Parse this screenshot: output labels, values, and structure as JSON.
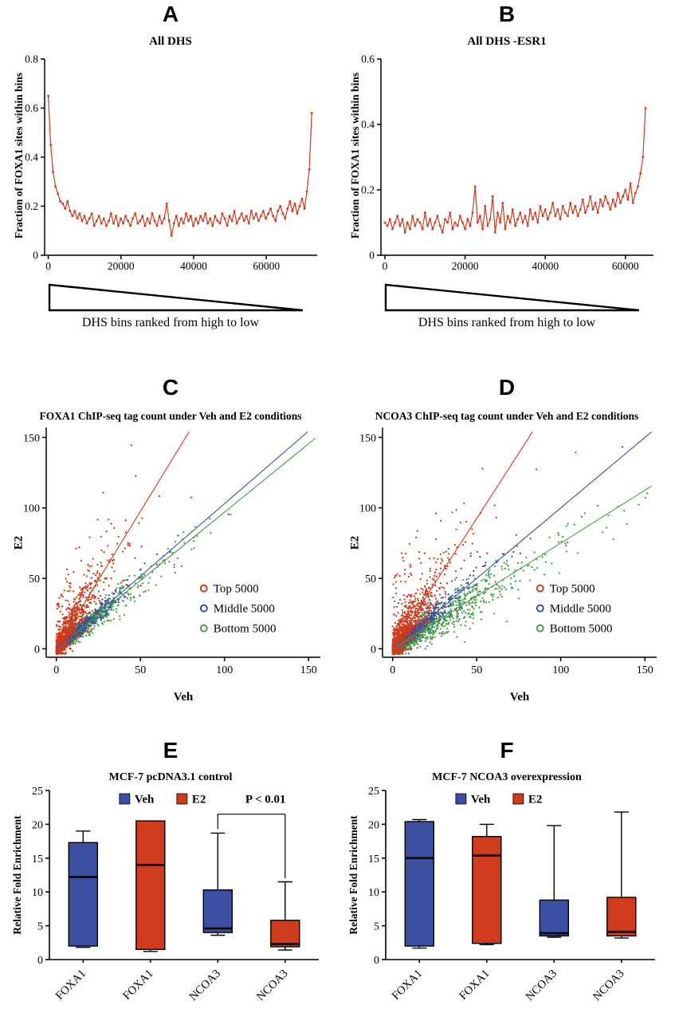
{
  "colors": {
    "red": "#cf3b1d",
    "blue": "#3a4fa2",
    "green": "#44a044",
    "axis": "#000000"
  },
  "panels": {
    "A": {
      "letter": "A",
      "title": "All DHS",
      "ylabel": "Fraction of FOXA1 sites within bins",
      "caption": "DHS bins ranked from high to low"
    },
    "B": {
      "letter": "B",
      "title": "All DHS -ESR1",
      "ylabel": "Fraction of FOXA1 sites within bins",
      "caption": "DHS bins ranked from high to low"
    },
    "C": {
      "letter": "C",
      "title": "FOXA1 ChIP-seq tag count under Veh and E2 conditions",
      "xlabel": "Veh",
      "ylabel": "E2"
    },
    "D": {
      "letter": "D",
      "title": "NCOA3 ChIP-seq tag count under Veh and E2 conditions",
      "xlabel": "Veh",
      "ylabel": "E2"
    },
    "E": {
      "letter": "E",
      "title": "MCF-7 pcDNA3.1 control",
      "ylabel": "Relative Fold Enrichment"
    },
    "F": {
      "letter": "F",
      "title": "MCF-7 NCOA3 overexpression",
      "ylabel": "Relative Fold Enrichment"
    }
  },
  "chart_data": [
    {
      "id": "A",
      "type": "line",
      "title": "All DHS",
      "xlabel": "DHS bins ranked from high to low",
      "ylabel": "Fraction of FOXA1 sites within bins",
      "color": "#cf3b1d",
      "xlim": [
        -1000,
        74000
      ],
      "ylim": [
        0,
        0.8
      ],
      "xticks": [
        0,
        20000,
        40000,
        60000
      ],
      "yticks": [
        0,
        0.2,
        0.4,
        0.6,
        0.8
      ],
      "x_data_max": 72500,
      "values": [
        0.65,
        0.45,
        0.34,
        0.28,
        0.25,
        0.22,
        0.21,
        0.19,
        0.22,
        0.18,
        0.16,
        0.18,
        0.15,
        0.17,
        0.14,
        0.16,
        0.13,
        0.15,
        0.17,
        0.12,
        0.14,
        0.16,
        0.13,
        0.15,
        0.12,
        0.14,
        0.17,
        0.13,
        0.16,
        0.12,
        0.15,
        0.13,
        0.16,
        0.14,
        0.12,
        0.15,
        0.17,
        0.13,
        0.14,
        0.16,
        0.12,
        0.15,
        0.13,
        0.17,
        0.14,
        0.12,
        0.16,
        0.13,
        0.15,
        0.21,
        0.14,
        0.08,
        0.13,
        0.16,
        0.12,
        0.15,
        0.13,
        0.17,
        0.14,
        0.16,
        0.12,
        0.15,
        0.13,
        0.16,
        0.14,
        0.17,
        0.13,
        0.15,
        0.12,
        0.16,
        0.14,
        0.13,
        0.17,
        0.15,
        0.12,
        0.16,
        0.14,
        0.18,
        0.13,
        0.15,
        0.17,
        0.14,
        0.16,
        0.13,
        0.18,
        0.15,
        0.17,
        0.14,
        0.16,
        0.18,
        0.15,
        0.17,
        0.19,
        0.16,
        0.14,
        0.18,
        0.2,
        0.17,
        0.15,
        0.19,
        0.22,
        0.18,
        0.21,
        0.17,
        0.2,
        0.23,
        0.19,
        0.26,
        0.35,
        0.58
      ]
    },
    {
      "id": "B",
      "type": "line",
      "title": "All DHS -ESR1",
      "xlabel": "DHS bins ranked from high to low",
      "ylabel": "Fraction of FOXA1 sites within bins",
      "color": "#cf3b1d",
      "xlim": [
        -1000,
        67000
      ],
      "ylim": [
        0,
        0.6
      ],
      "xticks": [
        0,
        20000,
        40000,
        60000
      ],
      "yticks": [
        0,
        0.2,
        0.4,
        0.6
      ],
      "x_data_max": 65000,
      "values": [
        0.1,
        0.09,
        0.11,
        0.08,
        0.1,
        0.12,
        0.09,
        0.11,
        0.07,
        0.1,
        0.08,
        0.12,
        0.09,
        0.11,
        0.1,
        0.08,
        0.13,
        0.09,
        0.11,
        0.08,
        0.1,
        0.12,
        0.09,
        0.07,
        0.11,
        0.1,
        0.13,
        0.08,
        0.1,
        0.09,
        0.12,
        0.1,
        0.08,
        0.11,
        0.09,
        0.13,
        0.21,
        0.1,
        0.12,
        0.08,
        0.15,
        0.09,
        0.11,
        0.18,
        0.07,
        0.13,
        0.1,
        0.16,
        0.08,
        0.12,
        0.1,
        0.14,
        0.09,
        0.11,
        0.13,
        0.1,
        0.12,
        0.09,
        0.14,
        0.11,
        0.13,
        0.1,
        0.15,
        0.12,
        0.14,
        0.11,
        0.13,
        0.16,
        0.12,
        0.14,
        0.11,
        0.15,
        0.13,
        0.12,
        0.16,
        0.13,
        0.15,
        0.12,
        0.14,
        0.17,
        0.13,
        0.15,
        0.18,
        0.14,
        0.16,
        0.13,
        0.17,
        0.15,
        0.18,
        0.16,
        0.14,
        0.17,
        0.15,
        0.19,
        0.16,
        0.18,
        0.2,
        0.17,
        0.22,
        0.16,
        0.19,
        0.21,
        0.25,
        0.3,
        0.45
      ]
    },
    {
      "id": "C",
      "type": "scatter",
      "title": "FOXA1 ChIP-seq tag count under Veh and E2 conditions",
      "xlabel": "Veh",
      "ylabel": "E2",
      "xlim": [
        -6,
        157
      ],
      "ylim": [
        -6,
        157
      ],
      "xticks": [
        0,
        50,
        100,
        150
      ],
      "yticks": [
        0,
        50,
        100,
        150
      ],
      "legend": [
        "Top 5000",
        "Middle 5000",
        "Bottom 5000"
      ],
      "series": [
        {
          "name": "Bottom 5000",
          "color": "#44a044",
          "n": 900,
          "x_scale": 16,
          "slope": 0.95,
          "noise": 5,
          "up_spread": 0,
          "fit_slope": 0.97,
          "seed": 103
        },
        {
          "name": "Middle 5000",
          "color": "#3a4fa2",
          "n": 750,
          "x_scale": 10,
          "slope": 1.0,
          "noise": 4,
          "up_spread": 0,
          "fit_slope": 1.03,
          "seed": 102
        },
        {
          "name": "Top 5000",
          "color": "#cf3b1d",
          "n": 850,
          "x_scale": 9,
          "slope": 1.9,
          "noise": 13,
          "up_spread": 45,
          "fit_slope": 1.95,
          "seed": 101
        }
      ],
      "legend_order": [
        "Top 5000",
        "Middle 5000",
        "Bottom 5000"
      ],
      "legend_colors": [
        "#cf3b1d",
        "#3a4fa2",
        "#44a044"
      ]
    },
    {
      "id": "D",
      "type": "scatter",
      "title": "NCOA3 ChIP-seq tag count under Veh and E2 conditions",
      "xlabel": "Veh",
      "ylabel": "E2",
      "xlim": [
        -6,
        157
      ],
      "ylim": [
        -6,
        157
      ],
      "xticks": [
        0,
        50,
        100,
        150
      ],
      "yticks": [
        0,
        50,
        100,
        150
      ],
      "legend": [
        "Top 5000",
        "Middle 5000",
        "Bottom 5000"
      ],
      "series": [
        {
          "name": "Bottom 5000",
          "color": "#44a044",
          "n": 1000,
          "x_scale": 24,
          "slope": 0.72,
          "noise": 7,
          "up_spread": 0,
          "fit_slope": 0.75,
          "seed": 203
        },
        {
          "name": "Middle 5000",
          "color": "#3a4fa2",
          "n": 800,
          "x_scale": 12,
          "slope": 1.0,
          "noise": 5,
          "up_spread": 0,
          "fit_slope": 1.0,
          "seed": 202
        },
        {
          "name": "Top 5000",
          "color": "#cf3b1d",
          "n": 900,
          "x_scale": 10,
          "slope": 1.8,
          "noise": 15,
          "up_spread": 50,
          "fit_slope": 1.85,
          "seed": 201
        }
      ],
      "legend_order": [
        "Top 5000",
        "Middle 5000",
        "Bottom 5000"
      ],
      "legend_colors": [
        "#cf3b1d",
        "#3a4fa2",
        "#44a044"
      ]
    },
    {
      "id": "E",
      "type": "box",
      "title": "MCF-7 pcDNA3.1 control",
      "ylabel": "Relative Fold Enrichment",
      "ylim": [
        0,
        25
      ],
      "yticks": [
        0,
        5,
        10,
        15,
        20,
        25
      ],
      "categories": [
        "FOXA1",
        "FOXA1",
        "NCOA3",
        "NCOA3"
      ],
      "groups": [
        "Veh",
        "E2",
        "Veh",
        "E2"
      ],
      "boxes": [
        {
          "low": 1.8,
          "q1": 2.0,
          "median": 12.2,
          "q3": 17.3,
          "high": 19.0,
          "color": "#3a4fa2"
        },
        {
          "low": 1.2,
          "q1": 1.5,
          "median": 14.0,
          "q3": 20.5,
          "high": 20.5,
          "color": "#cf3b1d"
        },
        {
          "low": 3.6,
          "q1": 4.0,
          "median": 4.6,
          "q3": 10.3,
          "high": 18.7,
          "color": "#3a4fa2"
        },
        {
          "low": 1.4,
          "q1": 1.9,
          "median": 2.3,
          "q3": 5.8,
          "high": 11.5,
          "color": "#cf3b1d"
        }
      ],
      "legend": [
        {
          "label": "Veh",
          "color": "#3a4fa2"
        },
        {
          "label": "E2",
          "color": "#cf3b1d"
        }
      ],
      "annotation": {
        "text": "P < 0.01",
        "bracket": {
          "from": 2,
          "to": 3,
          "y_left": 19.3,
          "y_top": 21.5,
          "y_right": 12.0
        }
      }
    },
    {
      "id": "F",
      "type": "box",
      "title": "MCF-7 NCOA3 overexpression",
      "ylabel": "Relative Fold Enrichment",
      "ylim": [
        0,
        25
      ],
      "yticks": [
        0,
        5,
        10,
        15,
        20,
        25
      ],
      "categories": [
        "FOXA1",
        "FOXA1",
        "NCOA3",
        "NCOA3"
      ],
      "groups": [
        "Veh",
        "E2",
        "Veh",
        "E2"
      ],
      "boxes": [
        {
          "low": 1.7,
          "q1": 2.0,
          "median": 15.0,
          "q3": 20.4,
          "high": 20.7,
          "color": "#3a4fa2"
        },
        {
          "low": 2.2,
          "q1": 2.4,
          "median": 15.4,
          "q3": 18.2,
          "high": 20.0,
          "color": "#cf3b1d"
        },
        {
          "low": 3.3,
          "q1": 3.5,
          "median": 3.9,
          "q3": 8.8,
          "high": 19.8,
          "color": "#3a4fa2"
        },
        {
          "low": 3.2,
          "q1": 3.5,
          "median": 4.1,
          "q3": 9.2,
          "high": 21.8,
          "color": "#cf3b1d"
        }
      ],
      "legend": [
        {
          "label": "Veh",
          "color": "#3a4fa2"
        },
        {
          "label": "E2",
          "color": "#cf3b1d"
        }
      ]
    }
  ]
}
